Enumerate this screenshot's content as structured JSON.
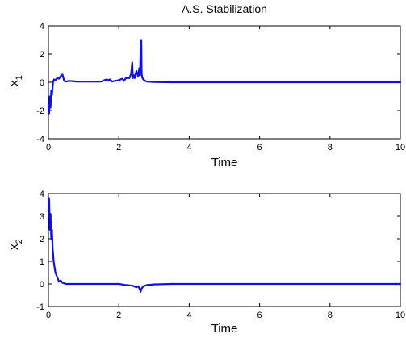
{
  "chart_data": [
    {
      "type": "line",
      "title": "A.S. Stabilization",
      "xlabel": "Time",
      "ylabel": "x",
      "ylabel_subscript": "1",
      "xlim": [
        0,
        10
      ],
      "ylim": [
        -4,
        4
      ],
      "xticks": [
        0,
        2,
        4,
        6,
        8,
        10
      ],
      "yticks": [
        -4,
        -2,
        0,
        2,
        4
      ],
      "grid": false,
      "line_color": "#1010e0",
      "series": [
        {
          "x": [
            0,
            0.02,
            0.04,
            0.06,
            0.08,
            0.1,
            0.13,
            0.16,
            0.2,
            0.25,
            0.3,
            0.35,
            0.4,
            0.45,
            0.5,
            0.6,
            0.8,
            1.0,
            1.2,
            1.5,
            1.65,
            1.7,
            1.75,
            1.8,
            2.0,
            2.1,
            2.15,
            2.2,
            2.3,
            2.35,
            2.38,
            2.4,
            2.43,
            2.45,
            2.5,
            2.55,
            2.58,
            2.6,
            2.62,
            2.64,
            2.65,
            2.67,
            2.7,
            2.75,
            2.8,
            3.0,
            3.5,
            4.0,
            5.0,
            6.0,
            7.0,
            8.0,
            9.0,
            10.0
          ],
          "y": [
            -1.6,
            -2.2,
            -1.0,
            -1.8,
            -0.6,
            -0.9,
            0.0,
            0.2,
            0.15,
            0.3,
            0.25,
            0.45,
            0.55,
            0.1,
            0.05,
            0.1,
            0.05,
            0.05,
            0.05,
            0.05,
            0.2,
            0.15,
            0.2,
            0.05,
            0.15,
            0.25,
            0.1,
            0.3,
            0.3,
            0.6,
            1.4,
            0.3,
            0.5,
            0.3,
            0.8,
            0.4,
            1.0,
            0.5,
            2.2,
            3.0,
            0.6,
            0.3,
            0.2,
            0.1,
            0.05,
            0.02,
            0.0,
            0.0,
            0.0,
            0.0,
            0.0,
            0.0,
            0.0,
            0.0
          ]
        }
      ]
    },
    {
      "type": "line",
      "title": "",
      "xlabel": "Time",
      "ylabel": "x",
      "ylabel_subscript": "2",
      "xlim": [
        0,
        10
      ],
      "ylim": [
        -1,
        4
      ],
      "xticks": [
        0,
        2,
        4,
        6,
        8,
        10
      ],
      "yticks": [
        -1,
        0,
        1,
        2,
        3,
        4
      ],
      "grid": false,
      "line_color": "#1010e0",
      "series": [
        {
          "x": [
            0,
            0.02,
            0.04,
            0.06,
            0.08,
            0.1,
            0.12,
            0.15,
            0.18,
            0.2,
            0.25,
            0.3,
            0.35,
            0.4,
            0.5,
            0.7,
            1.0,
            1.5,
            2.0,
            2.2,
            2.4,
            2.5,
            2.55,
            2.6,
            2.62,
            2.65,
            2.7,
            2.8,
            3.0,
            3.5,
            4.0,
            5.0,
            6.0,
            7.0,
            8.0,
            9.0,
            10.0
          ],
          "y": [
            3.3,
            3.8,
            2.4,
            3.1,
            2.0,
            2.4,
            1.6,
            1.0,
            0.7,
            0.5,
            0.3,
            0.1,
            0.15,
            0.05,
            0.0,
            0.0,
            0.0,
            0.0,
            0.0,
            -0.05,
            -0.08,
            -0.15,
            -0.1,
            -0.25,
            -0.35,
            -0.2,
            -0.1,
            -0.05,
            -0.02,
            0.0,
            0.0,
            0.0,
            0.0,
            0.0,
            0.0,
            0.0,
            0.0
          ]
        }
      ]
    }
  ]
}
